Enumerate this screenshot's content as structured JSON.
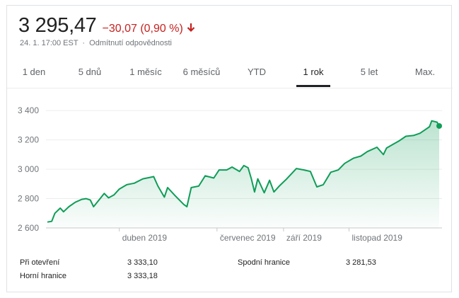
{
  "header": {
    "price": "3 295,47",
    "change": "−30,07 (0,90 %)",
    "timestamp": "24. 1. 17:00 EST",
    "separator": "·",
    "disclaimer": "Odmítnutí odpovědnosti",
    "colors": {
      "down": "#c5221f",
      "line": "#0f9d58"
    }
  },
  "tabs": [
    {
      "label": "1 den"
    },
    {
      "label": "5 dnů"
    },
    {
      "label": "1 měsíc"
    },
    {
      "label": "6 měsíců"
    },
    {
      "label": "YTD"
    },
    {
      "label": "1 rok",
      "active": true
    },
    {
      "label": "5 let"
    },
    {
      "label": "Max."
    }
  ],
  "stats": {
    "open_label": "Při otevření",
    "open_value": "3 333,10",
    "high_label": "Horní hranice",
    "high_value": "3 333,18",
    "low_label": "Spodní hranice",
    "low_value": "3 281,53"
  },
  "chart_data": {
    "type": "area",
    "title": "",
    "xlabel": "",
    "ylabel": "",
    "ylim": [
      2600,
      3430
    ],
    "xlim": [
      "2019-01-24",
      "2020-01-24"
    ],
    "y_ticks": [
      {
        "value": 2600,
        "label": "2 600"
      },
      {
        "value": 2800,
        "label": "2 800"
      },
      {
        "value": 3000,
        "label": "3 000"
      },
      {
        "value": 3200,
        "label": "3 200"
      },
      {
        "value": 3400,
        "label": "3 400"
      }
    ],
    "x_ticks": [
      {
        "date": "2019-04-01",
        "label": "duben 2019"
      },
      {
        "date": "2019-07-01",
        "label": "červenec 2019"
      },
      {
        "date": "2019-09-01",
        "label": "září 2019"
      },
      {
        "date": "2019-11-01",
        "label": "listopad 2019"
      }
    ],
    "grid": true,
    "series": [
      {
        "points": [
          [
            "2019-01-24",
            2640
          ],
          [
            "2019-01-28",
            2645
          ],
          [
            "2019-01-31",
            2700
          ],
          [
            "2019-02-05",
            2735
          ],
          [
            "2019-02-08",
            2710
          ],
          [
            "2019-02-13",
            2745
          ],
          [
            "2019-02-19",
            2775
          ],
          [
            "2019-02-25",
            2795
          ],
          [
            "2019-03-01",
            2800
          ],
          [
            "2019-03-05",
            2790
          ],
          [
            "2019-03-08",
            2745
          ],
          [
            "2019-03-13",
            2790
          ],
          [
            "2019-03-18",
            2835
          ],
          [
            "2019-03-22",
            2805
          ],
          [
            "2019-03-27",
            2825
          ],
          [
            "2019-04-01",
            2865
          ],
          [
            "2019-04-08",
            2895
          ],
          [
            "2019-04-15",
            2905
          ],
          [
            "2019-04-23",
            2935
          ],
          [
            "2019-04-30",
            2945
          ],
          [
            "2019-05-03",
            2950
          ],
          [
            "2019-05-07",
            2885
          ],
          [
            "2019-05-13",
            2810
          ],
          [
            "2019-05-16",
            2875
          ],
          [
            "2019-05-23",
            2820
          ],
          [
            "2019-05-31",
            2760
          ],
          [
            "2019-06-03",
            2745
          ],
          [
            "2019-06-07",
            2875
          ],
          [
            "2019-06-14",
            2885
          ],
          [
            "2019-06-20",
            2955
          ],
          [
            "2019-06-28",
            2940
          ],
          [
            "2019-07-03",
            2995
          ],
          [
            "2019-07-10",
            2995
          ],
          [
            "2019-07-15",
            3015
          ],
          [
            "2019-07-22",
            2985
          ],
          [
            "2019-07-26",
            3025
          ],
          [
            "2019-07-30",
            3010
          ],
          [
            "2019-08-02",
            2935
          ],
          [
            "2019-08-05",
            2845
          ],
          [
            "2019-08-08",
            2935
          ],
          [
            "2019-08-14",
            2840
          ],
          [
            "2019-08-19",
            2925
          ],
          [
            "2019-08-23",
            2845
          ],
          [
            "2019-08-28",
            2885
          ],
          [
            "2019-09-04",
            2935
          ],
          [
            "2019-09-13",
            3005
          ],
          [
            "2019-09-20",
            2995
          ],
          [
            "2019-09-26",
            2985
          ],
          [
            "2019-10-02",
            2880
          ],
          [
            "2019-10-08",
            2895
          ],
          [
            "2019-10-15",
            2980
          ],
          [
            "2019-10-22",
            2995
          ],
          [
            "2019-10-28",
            3040
          ],
          [
            "2019-11-05",
            3075
          ],
          [
            "2019-11-12",
            3090
          ],
          [
            "2019-11-18",
            3120
          ],
          [
            "2019-11-27",
            3150
          ],
          [
            "2019-12-03",
            3100
          ],
          [
            "2019-12-06",
            3145
          ],
          [
            "2019-12-12",
            3170
          ],
          [
            "2019-12-18",
            3195
          ],
          [
            "2019-12-24",
            3225
          ],
          [
            "2019-12-31",
            3230
          ],
          [
            "2020-01-06",
            3245
          ],
          [
            "2020-01-10",
            3265
          ],
          [
            "2020-01-15",
            3290
          ],
          [
            "2020-01-17",
            3330
          ],
          [
            "2020-01-22",
            3321
          ],
          [
            "2020-01-24",
            3295
          ]
        ]
      }
    ]
  }
}
